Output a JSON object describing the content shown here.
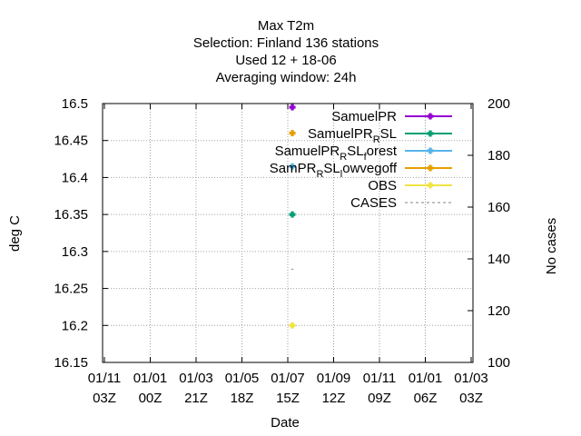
{
  "chart_data": {
    "type": "scatter",
    "title_lines": [
      "Max T2m",
      "Selection: Finland     136 stations",
      "Used  12 + 18-06",
      "Averaging window: 24h"
    ],
    "xlabel": "Date",
    "ylabel": "deg C",
    "y2label": "No cases",
    "x_ticks": [
      {
        "line1": "01/11",
        "line2": "03Z"
      },
      {
        "line1": "01/01",
        "line2": "00Z"
      },
      {
        "line1": "01/03",
        "line2": "21Z"
      },
      {
        "line1": "01/05",
        "line2": "18Z"
      },
      {
        "line1": "01/07",
        "line2": "15Z"
      },
      {
        "line1": "01/09",
        "line2": "12Z"
      },
      {
        "line1": "01/11",
        "line2": "09Z"
      },
      {
        "line1": "01/01",
        "line2": "06Z"
      },
      {
        "line1": "01/03",
        "line2": "03Z"
      }
    ],
    "y_ticks": [
      "16.5",
      "16.45",
      "16.4",
      "16.35",
      "16.3",
      "16.25",
      "16.2",
      "16.15"
    ],
    "y2_ticks": [
      "200",
      "180",
      "160",
      "140",
      "120",
      "100"
    ],
    "ylim": [
      16.15,
      16.5
    ],
    "y2lim": [
      100,
      200
    ],
    "grid": true,
    "legend_position": "top-right",
    "series": [
      {
        "name": "SamuelPR",
        "color": "#9400d3",
        "marker": "plus-filled",
        "y": 16.495
      },
      {
        "name": "SamuelPR_RSL",
        "color": "#009e73",
        "marker": "plus-filled",
        "y": 16.35
      },
      {
        "name": "SamuelPR_RSL_forest",
        "color": "#56b4e9",
        "marker": "plus-filled",
        "y": 16.415
      },
      {
        "name": "SamPR_RSL_lowvegoff",
        "color": "#e69f00",
        "marker": "plus-filled",
        "y": 16.46
      },
      {
        "name": "OBS",
        "color": "#f0e442",
        "marker": "plus-filled",
        "y": 16.2
      },
      {
        "name": "CASES",
        "color": "#808080",
        "marker": "dash",
        "y2": 136
      }
    ],
    "point_x_tick_index": 4.1
  }
}
